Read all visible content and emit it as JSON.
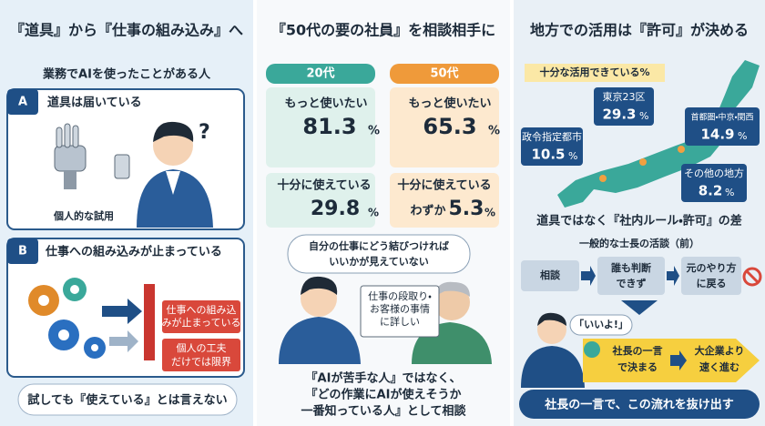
{
  "panels": [
    {
      "title": "『道具』から『仕事の組み込み』へ",
      "subtitle": "業務でAIを使ったことがある人",
      "box_a": {
        "label": "A",
        "heading": "道具は届いている",
        "caption": "個人的な試用"
      },
      "box_b": {
        "label": "B",
        "heading": "仕事への組み込みが止まっている",
        "tag1": [
          "仕事への組み込",
          "みが止まっている"
        ],
        "tag2": [
          "個人の工夫",
          "だけでは限界"
        ]
      },
      "footer": "試しても『使えている』とは言えない"
    },
    {
      "title": "『50代の要の社員』を相談相手に",
      "columns": [
        {
          "header": "20代",
          "want_more": {
            "label": "もっと使いたい",
            "value": "81.3",
            "unit": "%"
          },
          "enough": {
            "label": "十分に使えている",
            "value": "29.8",
            "unit": "%"
          }
        },
        {
          "header": "50代",
          "want_more": {
            "label": "もっと使いたい",
            "value": "65.3",
            "unit": "%"
          },
          "enough": {
            "label": "十分に使えている",
            "prefix": "わずか",
            "value": "5.3",
            "unit": "%"
          }
        }
      ],
      "bubble": [
        "自分の仕事にどう結びつければ",
        "いいかが見えていない"
      ],
      "note": [
        "仕事の段取り・",
        "お客様の事情",
        "に詳しい"
      ],
      "footer": [
        "『AIが苦手な人』ではなく、",
        "『どの作業にAIが使えそうか",
        "一番知っている人』として相談"
      ]
    },
    {
      "title": "地方での活用は『許可』が決める",
      "map_label": "十分な活用できている%",
      "regions": [
        {
          "name": "東京23区",
          "value": "29.3",
          "unit": "%"
        },
        {
          "name": "首都圏・中京・関西",
          "value": "14.9",
          "unit": "%"
        },
        {
          "name": "政令指定都市",
          "value": "10.5",
          "unit": "%"
        },
        {
          "name": "その他の地方",
          "value": "8.2",
          "unit": "%"
        }
      ],
      "heading": "道具ではなく『社内ルール・許可』の差",
      "subheading": "一般的な士長の活談（前）",
      "flow": [
        [
          "相談"
        ],
        [
          "誰も判断",
          "できず"
        ],
        [
          "元のやり方",
          "に戻る"
        ]
      ],
      "speech": "「いいよ!」",
      "result": [
        [
          "社長の一言",
          "で決まる"
        ],
        [
          "大企業より",
          "速く進む"
        ]
      ],
      "footer": "社長の一言で、この流れを抜け出す"
    }
  ]
}
